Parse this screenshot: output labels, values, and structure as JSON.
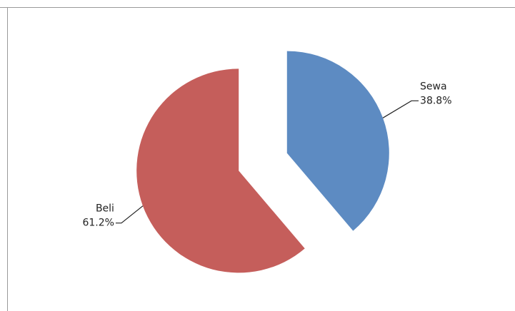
{
  "chart_data": {
    "type": "pie",
    "categories": [
      "Sewa",
      "Beli"
    ],
    "values": [
      38.8,
      61.2
    ],
    "value_labels": [
      "38.8%",
      "61.2%"
    ],
    "colors": [
      "#4f81bd",
      "#c0504d"
    ]
  }
}
